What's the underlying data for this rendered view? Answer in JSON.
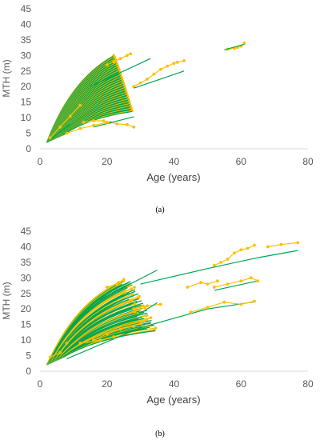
{
  "chart_data": [
    {
      "type": "line",
      "panel_label": "(a)",
      "xlabel": "Age (years)",
      "ylabel": "MTH (m)",
      "xlim": [
        0,
        80
      ],
      "ylim": [
        0,
        45
      ],
      "xticks": [
        "0",
        "20",
        "40",
        "60",
        "80"
      ],
      "yticks": [
        "0",
        "5",
        "10",
        "15",
        "20",
        "25",
        "30",
        "35",
        "40",
        "45"
      ],
      "grid": false,
      "legend": "none",
      "series_colors": {
        "observed": "#FFC000",
        "fitted": "#00A651"
      },
      "series": [
        {
          "kind": "observed",
          "points": [
            [
              56,
              32
            ],
            [
              58,
              32.3
            ],
            [
              59,
              32.6
            ],
            [
              60,
              33
            ],
            [
              61,
              34
            ]
          ]
        },
        {
          "kind": "fitted",
          "points": [
            [
              55,
              31.8
            ],
            [
              61,
              33.6
            ]
          ]
        },
        {
          "kind": "observed",
          "points": [
            [
              28,
              20
            ],
            [
              30,
              21.2
            ],
            [
              32,
              22.4
            ],
            [
              34,
              24
            ],
            [
              36,
              25.5
            ],
            [
              38,
              26.6
            ],
            [
              40,
              27.5
            ],
            [
              41,
              27.8
            ],
            [
              43,
              28.3
            ]
          ]
        },
        {
          "kind": "fitted",
          "points": [
            [
              28,
              19.5
            ],
            [
              43,
              25
            ]
          ]
        },
        {
          "kind": "observed",
          "points": [
            [
              13,
              8.5
            ],
            [
              16,
              9
            ],
            [
              19,
              9
            ],
            [
              21,
              8.5
            ],
            [
              23,
              8
            ],
            [
              26,
              7.8
            ],
            [
              28,
              7
            ]
          ]
        },
        {
          "kind": "fitted",
          "points": [
            [
              16,
              7
            ],
            [
              28,
              10.3
            ]
          ]
        },
        {
          "kind": "observed",
          "points": [
            [
              8,
              5
            ],
            [
              12,
              6.5
            ],
            [
              16,
              7.5
            ],
            [
              20,
              8.5
            ]
          ]
        },
        {
          "kind": "fitted",
          "points": [
            [
              2,
              2
            ],
            [
              9,
              8
            ]
          ]
        },
        {
          "kind": "observed",
          "points": [
            [
              20,
              27
            ],
            [
              22,
              28
            ],
            [
              24,
              29
            ],
            [
              26,
              30
            ],
            [
              27,
              30.5
            ]
          ]
        },
        {
          "kind": "fitted",
          "points": [
            [
              15,
              20
            ],
            [
              33,
              29
            ]
          ]
        },
        {
          "kind": "observed",
          "points": [
            [
              3,
              3.5
            ],
            [
              6,
              7
            ],
            [
              9,
              10.5
            ],
            [
              12,
              14
            ]
          ]
        }
      ]
    },
    {
      "type": "line",
      "panel_label": "(b)",
      "xlabel": "Age (years)",
      "ylabel": "MTH (m)",
      "xlim": [
        0,
        80
      ],
      "ylim": [
        0,
        45
      ],
      "xticks": [
        "0",
        "20",
        "40",
        "60",
        "80"
      ],
      "yticks": [
        "0",
        "5",
        "10",
        "15",
        "20",
        "25",
        "30",
        "35",
        "40",
        "45"
      ],
      "grid": false,
      "legend": "none",
      "series_colors": {
        "observed": "#FFC000",
        "fitted": "#00A651"
      },
      "series": [
        {
          "kind": "observed",
          "points": [
            [
              52,
              34
            ],
            [
              54,
              35
            ],
            [
              56,
              36
            ],
            [
              58,
              38
            ],
            [
              60,
              39
            ],
            [
              62,
              39.5
            ],
            [
              64,
              40.5
            ]
          ]
        },
        {
          "kind": "observed",
          "points": [
            [
              68,
              40
            ],
            [
              72,
              40.7
            ],
            [
              77,
              41.3
            ]
          ]
        },
        {
          "kind": "fitted",
          "points": [
            [
              30,
              28
            ],
            [
              50,
              33
            ],
            [
              65,
              36.5
            ],
            [
              77,
              38.8
            ]
          ]
        },
        {
          "kind": "fitted",
          "points": [
            [
              8,
              4
            ],
            [
              30,
              14
            ],
            [
              50,
              20
            ],
            [
              64,
              22.3
            ]
          ]
        },
        {
          "kind": "observed",
          "points": [
            [
              45,
              19
            ],
            [
              50,
              20.5
            ],
            [
              55,
              22.2
            ],
            [
              60,
              21.5
            ],
            [
              64,
              22.5
            ]
          ]
        },
        {
          "kind": "fitted",
          "points": [
            [
              52,
              26
            ],
            [
              65,
              29
            ]
          ]
        },
        {
          "kind": "observed",
          "points": [
            [
              52,
              27
            ],
            [
              56,
              28
            ],
            [
              60,
              29
            ],
            [
              63,
              30
            ],
            [
              65,
              29
            ]
          ]
        },
        {
          "kind": "observed",
          "points": [
            [
              44,
              27
            ],
            [
              48,
              28.5
            ],
            [
              50,
              28
            ],
            [
              53,
              29
            ]
          ]
        },
        {
          "kind": "observed",
          "points": [
            [
              28,
              20
            ],
            [
              32,
              21
            ],
            [
              36,
              21.5
            ]
          ]
        },
        {
          "kind": "fitted",
          "points": [
            [
              29,
              18
            ],
            [
              35,
              22
            ]
          ]
        },
        {
          "kind": "observed",
          "points": [
            [
              16,
              10
            ],
            [
              20,
              12
            ],
            [
              24,
              13.5
            ],
            [
              28,
              14.5
            ]
          ]
        },
        {
          "kind": "observed",
          "points": [
            [
              12,
              9
            ],
            [
              18,
              10
            ],
            [
              22,
              11
            ]
          ]
        },
        {
          "kind": "observed",
          "points": [
            [
              20,
              27
            ],
            [
              23,
              28
            ],
            [
              25,
              29.5
            ]
          ]
        },
        {
          "kind": "fitted",
          "points": [
            [
              16,
              22
            ],
            [
              35,
              32.5
            ]
          ]
        },
        {
          "kind": "observed",
          "points": [
            [
              3,
              4.5
            ],
            [
              6,
              6
            ],
            [
              8,
              9
            ]
          ]
        }
      ]
    }
  ]
}
